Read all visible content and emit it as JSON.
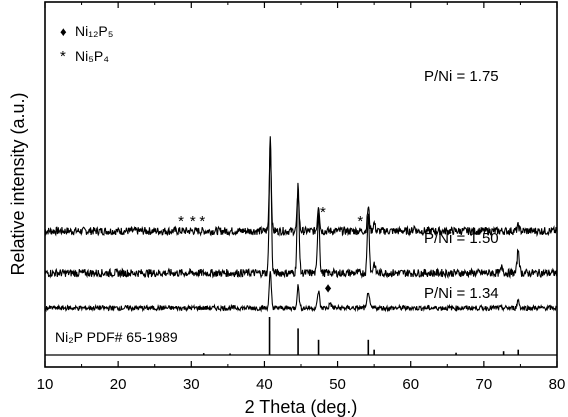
{
  "chart_data": {
    "type": "line",
    "xlabel": "2 Theta (deg.)",
    "ylabel": "Relative intensity (a.u.)",
    "xlim": [
      10,
      80
    ],
    "x_ticks": [
      10,
      20,
      30,
      40,
      50,
      60,
      70,
      80
    ],
    "y_scale": "arbitrary units, curves vertically offset",
    "legend": {
      "placement": "top-left",
      "items": [
        {
          "symbol": "♦",
          "label": "Ni₁₂P₅"
        },
        {
          "symbol": "*",
          "label": "Ni₅P₄"
        }
      ]
    },
    "series": [
      {
        "name": "P/Ni = 1.75",
        "baseline": 100,
        "noise": 4,
        "peaks": [
          {
            "x": 40.8,
            "height": 80
          },
          {
            "x": 44.6,
            "height": 36
          },
          {
            "x": 47.4,
            "height": 26
          },
          {
            "x": 54.2,
            "height": 24
          },
          {
            "x": 55.0,
            "height": 8
          },
          {
            "x": 74.7,
            "height": 5
          },
          {
            "x": 60.5,
            "height": 4
          }
        ],
        "annotations": [
          {
            "x": 28.6,
            "marker": "*"
          },
          {
            "x": 30.2,
            "marker": "*"
          },
          {
            "x": 31.5,
            "marker": "*"
          },
          {
            "x": 48.0,
            "marker": "*"
          },
          {
            "x": 53.1,
            "marker": "*"
          }
        ]
      },
      {
        "name": "P/Ni = 1.50",
        "baseline": 58,
        "noise": 4,
        "peaks": [
          {
            "x": 40.8,
            "height": 138
          },
          {
            "x": 44.6,
            "height": 88
          },
          {
            "x": 47.4,
            "height": 62
          },
          {
            "x": 54.2,
            "height": 60
          },
          {
            "x": 55.0,
            "height": 10
          },
          {
            "x": 74.7,
            "height": 24
          },
          {
            "x": 72.5,
            "height": 6
          }
        ],
        "annotations": []
      },
      {
        "name": "P/Ni = 1.34",
        "baseline": 23,
        "noise": 2.5,
        "peaks": [
          {
            "x": 40.8,
            "height": 35
          },
          {
            "x": 44.6,
            "height": 22
          },
          {
            "x": 47.4,
            "height": 17
          },
          {
            "x": 49.0,
            "height": 5
          },
          {
            "x": 54.2,
            "height": 17
          },
          {
            "x": 74.7,
            "height": 8
          }
        ],
        "annotations": [
          {
            "x": 48.7,
            "marker": "♦"
          }
        ]
      }
    ],
    "reference": {
      "label": "Ni₂P PDF# 65-1989",
      "sticks": [
        {
          "x": 40.7,
          "height": 100
        },
        {
          "x": 44.6,
          "height": 70
        },
        {
          "x": 47.4,
          "height": 40
        },
        {
          "x": 54.2,
          "height": 40
        },
        {
          "x": 55.0,
          "height": 14
        },
        {
          "x": 66.2,
          "height": 6
        },
        {
          "x": 72.7,
          "height": 10
        },
        {
          "x": 74.7,
          "height": 14
        },
        {
          "x": 31.7,
          "height": 5
        },
        {
          "x": 35.3,
          "height": 4
        }
      ]
    }
  }
}
